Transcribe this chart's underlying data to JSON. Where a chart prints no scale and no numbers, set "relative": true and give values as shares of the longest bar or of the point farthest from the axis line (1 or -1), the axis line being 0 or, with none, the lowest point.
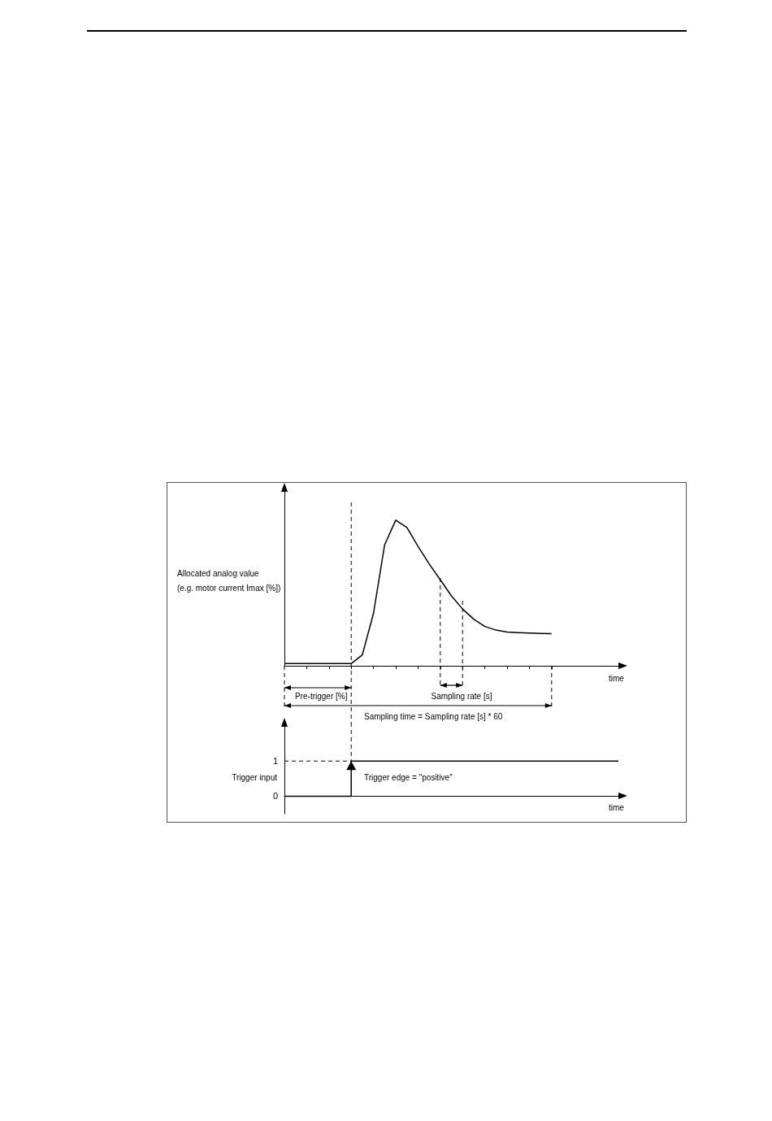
{
  "chart_data": [
    {
      "type": "line",
      "relative": true,
      "ylabel": "Allocated analog value\n(e.g. motor current Imax [%])",
      "xlabel": "time",
      "tick_labels": false,
      "marker": "none",
      "line_style": "solid",
      "categories": [
        null,
        null,
        null,
        null,
        null,
        null,
        null,
        null,
        null,
        null,
        null,
        null,
        null,
        null,
        null,
        null,
        null,
        null,
        null,
        null,
        null,
        null,
        null,
        null,
        null,
        null,
        null,
        null,
        null,
        null,
        null
      ],
      "series": [
        {
          "color": "#000000",
          "values": [
            0.015,
            0.015,
            0.015,
            0.015,
            0.015,
            0.015,
            0.015,
            0.075,
            0.36,
            0.83,
            1,
            0.95,
            0.82,
            0.7,
            0.59,
            0.48,
            0.39,
            0.32,
            0.27,
            0.245,
            0.232,
            0.228,
            0.225,
            0.222,
            0.22,
            null,
            null,
            null,
            null,
            null,
            null
          ]
        }
      ],
      "annotations": [
        "Pre-trigger [%]",
        "Sampling rate [s]",
        "Sampling time = Sampling rate [s] * 60"
      ]
    },
    {
      "type": "step",
      "ylabel": "Trigger input",
      "xlabel": "time",
      "tick_labels": "y",
      "marker": "none",
      "categories": [
        null,
        null,
        null,
        null,
        null,
        null,
        null,
        null,
        null,
        null,
        null,
        null,
        null,
        null,
        null,
        null,
        null,
        null,
        null,
        null,
        null,
        null,
        null,
        null,
        null,
        null,
        null,
        null,
        null,
        null,
        null
      ],
      "series": [
        {
          "color": "#000000",
          "values": [
            0,
            0,
            0,
            0,
            0,
            0,
            1,
            1,
            1,
            1,
            1,
            1,
            1,
            1,
            1,
            1,
            1,
            1,
            1,
            1,
            1,
            1,
            1,
            1,
            1,
            1,
            1,
            1,
            1,
            1,
            1
          ]
        }
      ],
      "ylim": [
        -0.5,
        2
      ],
      "yticks": [
        0,
        1
      ],
      "ref_lines": [
        {
          "axis": "y",
          "value": 1,
          "line_style": "dashed"
        }
      ],
      "annotations": [
        "Trigger edge = \"positive\""
      ]
    }
  ]
}
